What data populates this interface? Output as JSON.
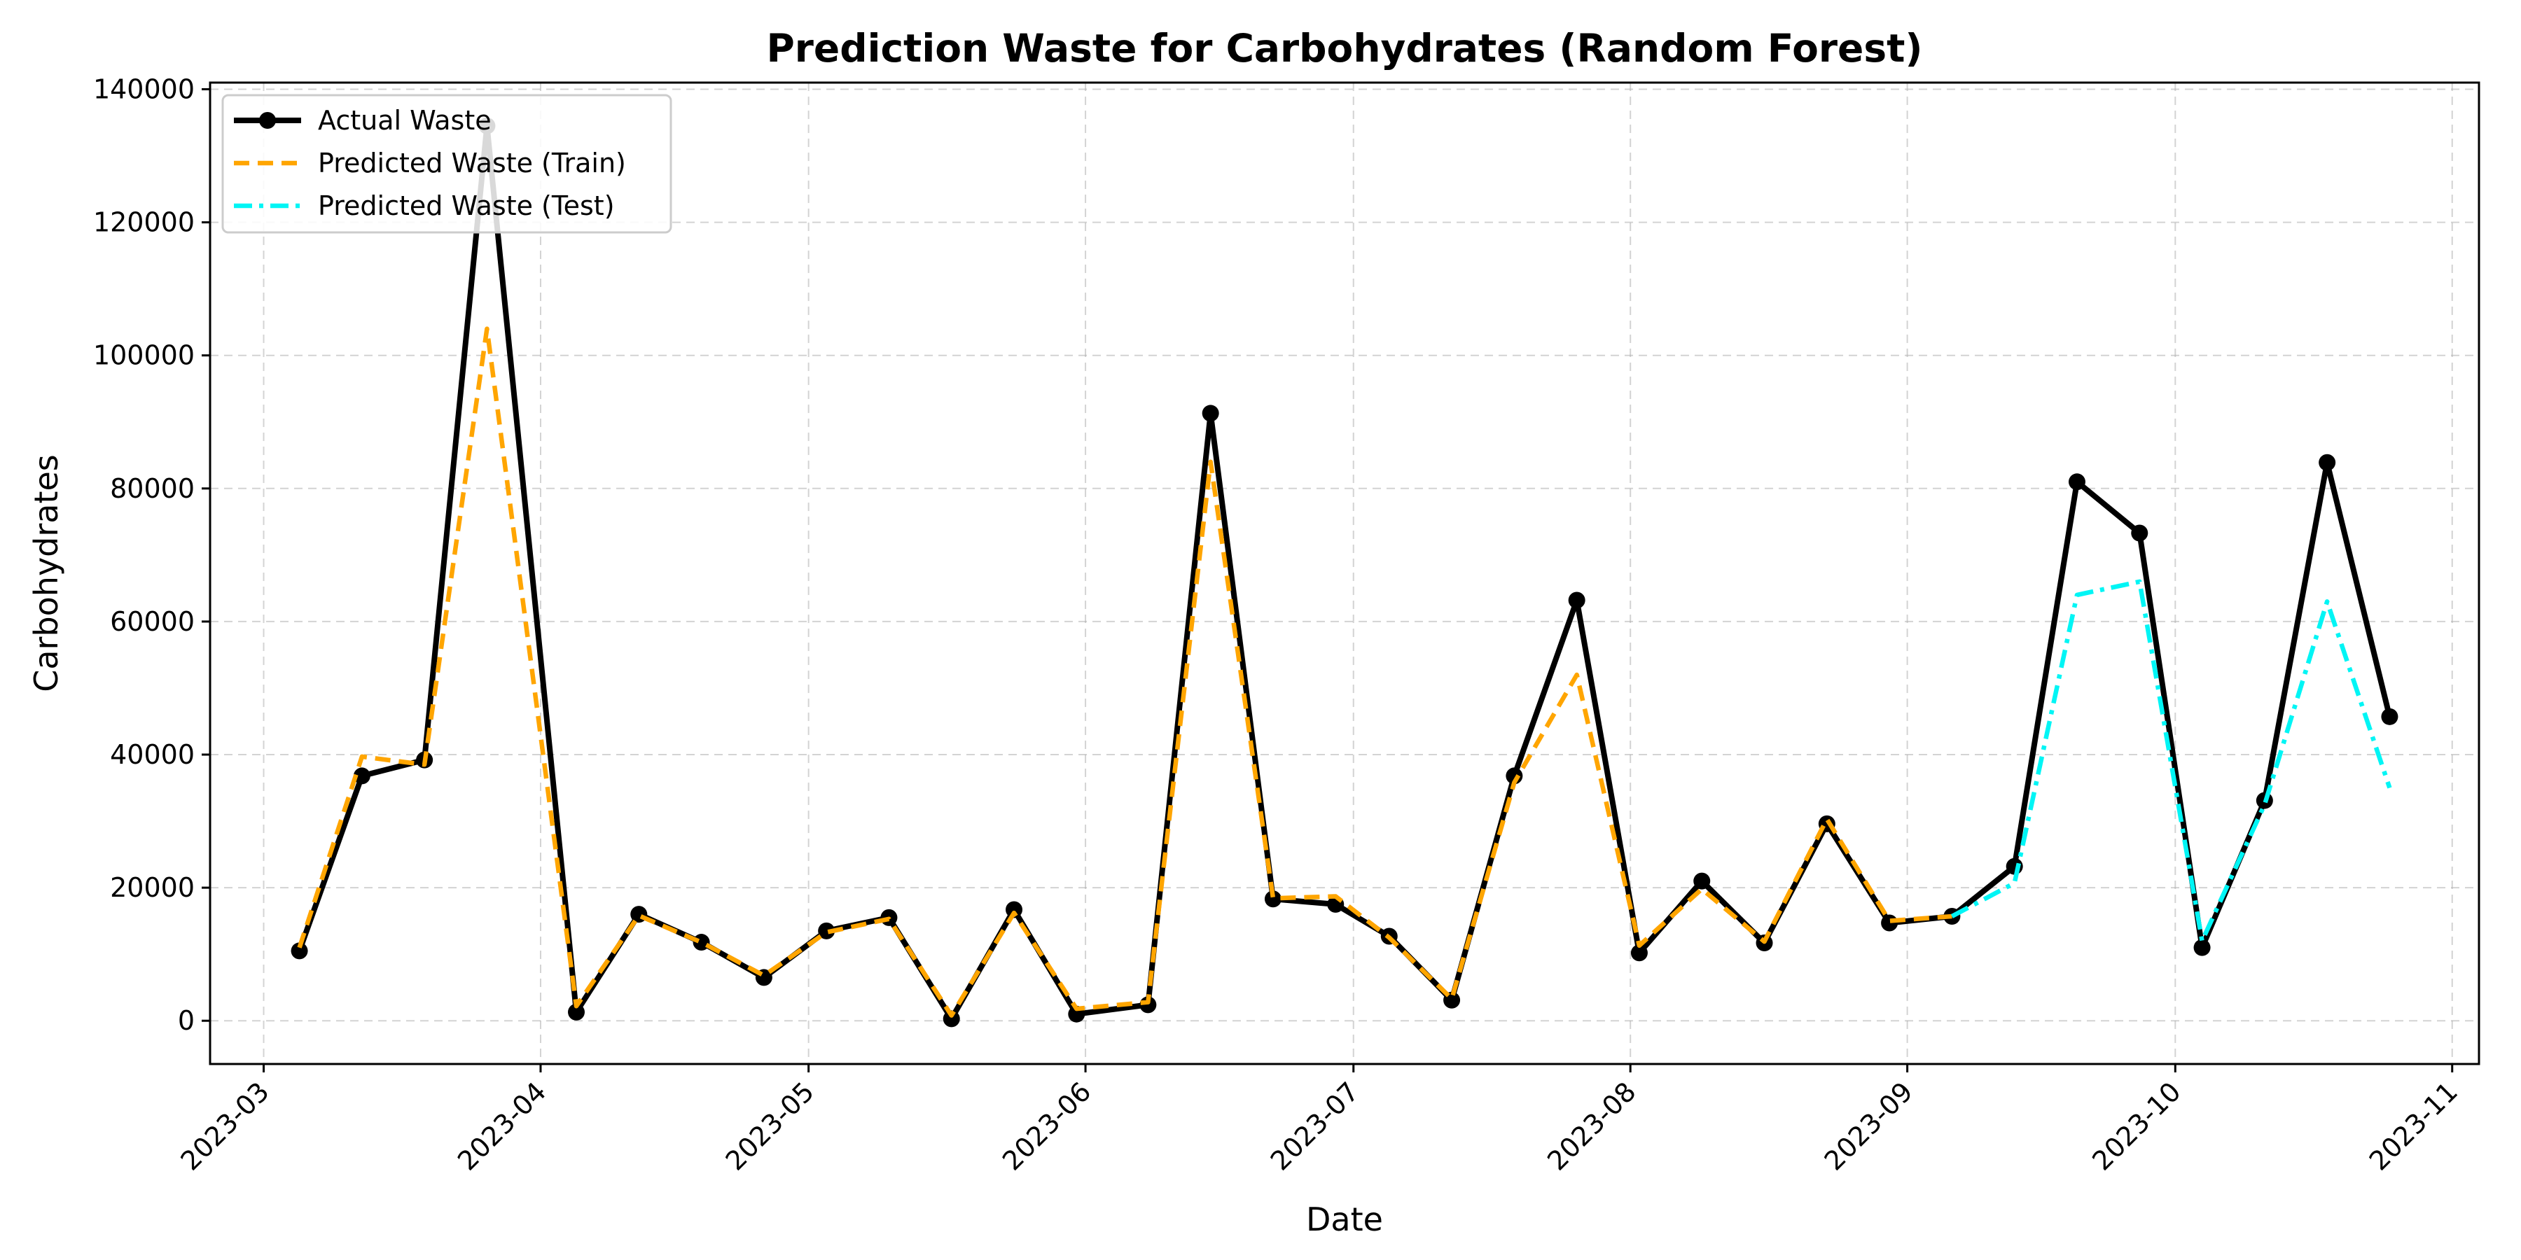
{
  "chart_data": {
    "type": "line",
    "title": "Prediction Waste for Carbohydrates (Random Forest)",
    "xlabel": "Date",
    "ylabel": "Carbohydrates",
    "x_axis": "date",
    "xlim": [
      "2023-02-23",
      "2023-11-04"
    ],
    "ylim": [
      -6500,
      141000
    ],
    "grid": true,
    "legend_position": "top-left",
    "x_ticks": [
      "2023-03-01",
      "2023-04-01",
      "2023-05-01",
      "2023-06-01",
      "2023-07-01",
      "2023-08-01",
      "2023-09-01",
      "2023-10-01",
      "2023-11-01"
    ],
    "x_tick_labels": [
      "2023-03",
      "2023-04",
      "2023-05",
      "2023-06",
      "2023-07",
      "2023-08",
      "2023-09",
      "2023-10",
      "2023-11"
    ],
    "y_ticks": [
      0,
      20000,
      40000,
      60000,
      80000,
      100000,
      120000,
      140000
    ],
    "y_tick_labels": [
      "0",
      "20000",
      "40000",
      "60000",
      "80000",
      "100000",
      "120000",
      "140000"
    ],
    "series": [
      {
        "name": "Actual Waste",
        "color": "#000000",
        "style": "solid-with-markers",
        "x": [
          "2023-03-05",
          "2023-03-12",
          "2023-03-19",
          "2023-03-26",
          "2023-04-05",
          "2023-04-12",
          "2023-04-19",
          "2023-04-26",
          "2023-05-03",
          "2023-05-10",
          "2023-05-17",
          "2023-05-24",
          "2023-05-31",
          "2023-06-08",
          "2023-06-15",
          "2023-06-22",
          "2023-06-29",
          "2023-07-05",
          "2023-07-12",
          "2023-07-19",
          "2023-07-26",
          "2023-08-02",
          "2023-08-09",
          "2023-08-16",
          "2023-08-23",
          "2023-08-30",
          "2023-09-06",
          "2023-09-13",
          "2023-09-20",
          "2023-09-27",
          "2023-10-04",
          "2023-10-11",
          "2023-10-18",
          "2023-10-25"
        ],
        "y": [
          10500,
          36800,
          39200,
          134500,
          1300,
          16000,
          11800,
          6500,
          13500,
          15500,
          300,
          16700,
          1000,
          2400,
          91300,
          18300,
          17500,
          12700,
          3100,
          36800,
          63200,
          10200,
          21000,
          11700,
          29600,
          14700,
          15700,
          23200,
          81000,
          73300,
          11000,
          33100,
          83900,
          45700
        ]
      },
      {
        "name": "Predicted Waste (Train)",
        "color": "#ffa500",
        "style": "dashed",
        "x": [
          "2023-03-05",
          "2023-03-12",
          "2023-03-19",
          "2023-03-26",
          "2023-04-05",
          "2023-04-12",
          "2023-04-19",
          "2023-04-26",
          "2023-05-03",
          "2023-05-10",
          "2023-05-17",
          "2023-05-24",
          "2023-05-31",
          "2023-06-08",
          "2023-06-15",
          "2023-06-22",
          "2023-06-29",
          "2023-07-05",
          "2023-07-12",
          "2023-07-19",
          "2023-07-26",
          "2023-08-02",
          "2023-08-09",
          "2023-08-16",
          "2023-08-23",
          "2023-08-30",
          "2023-09-06"
        ],
        "y": [
          11000,
          39700,
          38500,
          104000,
          2200,
          15800,
          11800,
          6800,
          13300,
          15300,
          800,
          16200,
          1800,
          2800,
          84000,
          18400,
          18700,
          12500,
          3300,
          35800,
          52000,
          11300,
          19800,
          11900,
          30300,
          15000,
          15700
        ]
      },
      {
        "name": "Predicted Waste (Test)",
        "color": "#00f5f5",
        "style": "dashdot",
        "x": [
          "2023-09-06",
          "2023-09-13",
          "2023-09-20",
          "2023-09-27",
          "2023-10-04",
          "2023-10-11",
          "2023-10-18",
          "2023-10-25"
        ],
        "y": [
          15700,
          20700,
          64000,
          66000,
          12000,
          32500,
          63000,
          35000
        ]
      }
    ]
  }
}
